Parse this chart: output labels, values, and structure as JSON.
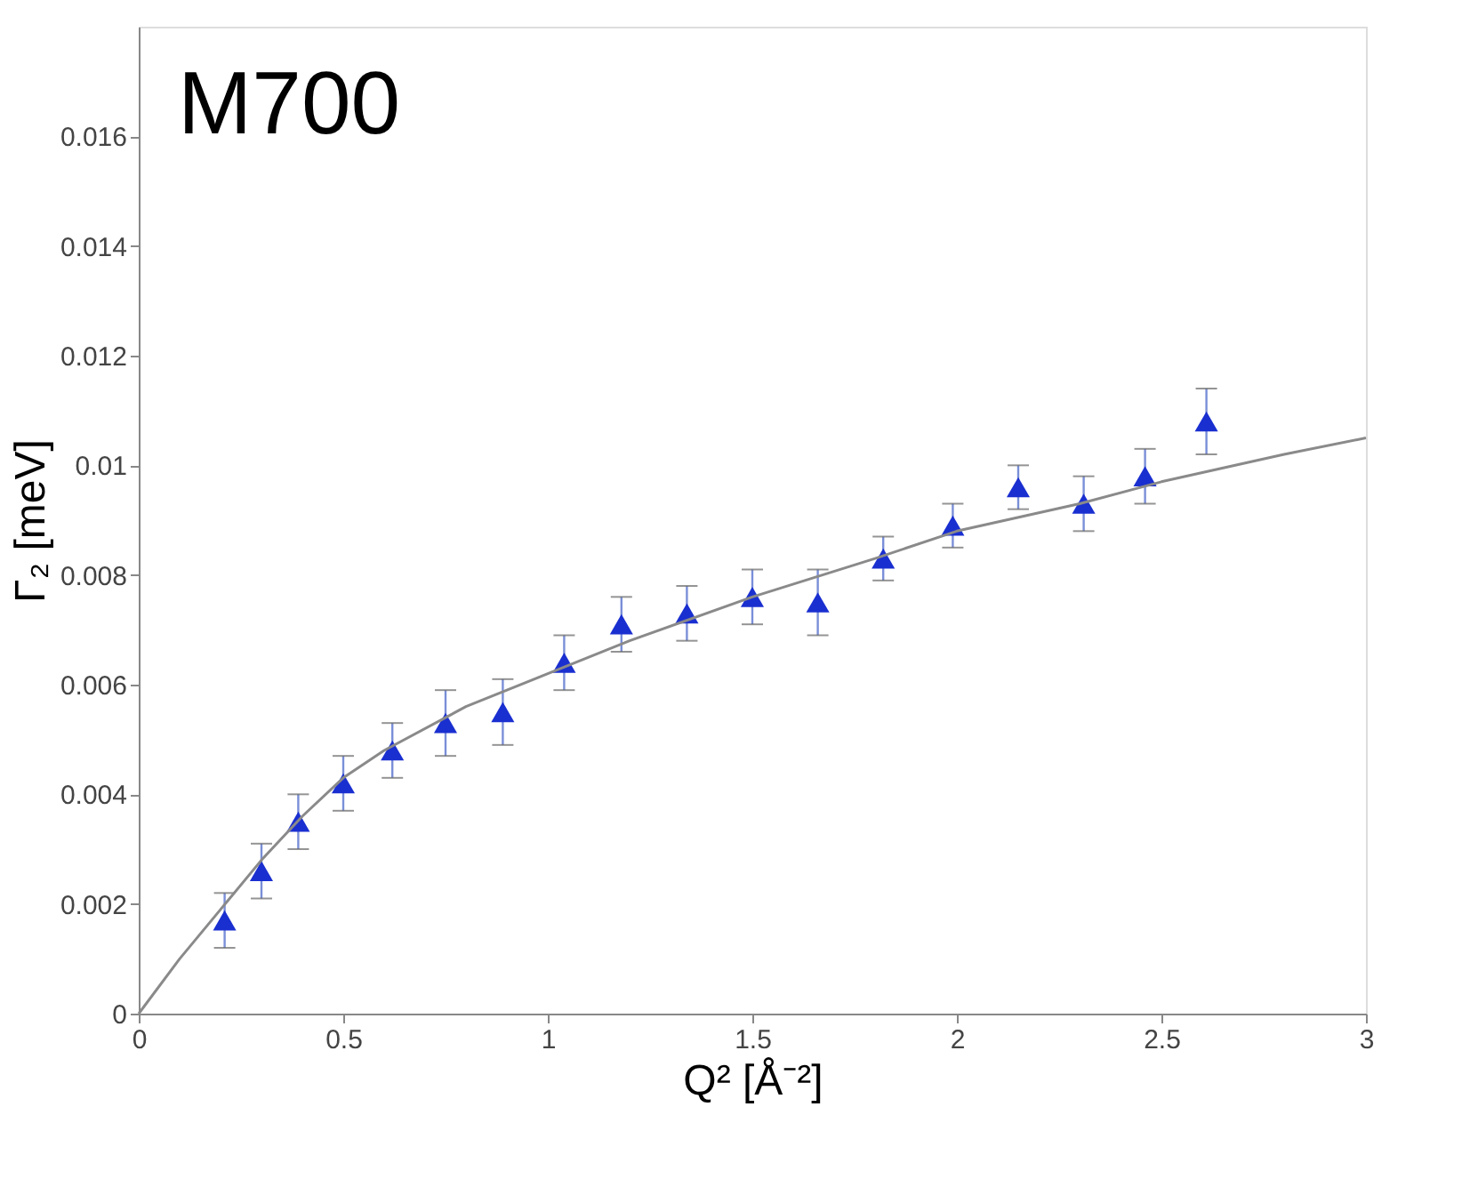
{
  "chart_data": {
    "type": "scatter",
    "title": "M700",
    "xlabel": "Q² [Å⁻²]",
    "ylabel": "Γ₂ [meV]",
    "xlim": [
      0,
      3
    ],
    "ylim": [
      0,
      0.018
    ],
    "xticks": [
      0,
      0.5,
      1,
      1.5,
      2,
      2.5,
      3
    ],
    "yticks": [
      0,
      0.002,
      0.004,
      0.006,
      0.008,
      0.01,
      0.012,
      0.014,
      0.016
    ],
    "series": [
      {
        "color": "#1a2fd0",
        "marker": "triangle",
        "x": [
          0.21,
          0.3,
          0.39,
          0.5,
          0.62,
          0.75,
          0.89,
          1.04,
          1.18,
          1.34,
          1.5,
          1.66,
          1.82,
          1.99,
          2.15,
          2.31,
          2.46,
          2.61
        ],
        "values": [
          0.0017,
          0.0026,
          0.0035,
          0.0042,
          0.0048,
          0.0053,
          0.0055,
          0.0064,
          0.0071,
          0.0073,
          0.0076,
          0.0075,
          0.0083,
          0.0089,
          0.0096,
          0.0093,
          0.0098,
          0.0108
        ],
        "errors": [
          0.0005,
          0.0005,
          0.0005,
          0.0005,
          0.0005,
          0.0006,
          0.0006,
          0.0005,
          0.0005,
          0.0005,
          0.0005,
          0.0006,
          0.0004,
          0.0004,
          0.0004,
          0.0005,
          0.0005,
          0.0006
        ]
      },
      {
        "type": "line",
        "color": "#8a8a8a",
        "marker": "none",
        "line_style": "solid",
        "x": [
          0,
          0.1,
          0.2,
          0.3,
          0.4,
          0.5,
          0.6,
          0.8,
          1.0,
          1.2,
          1.5,
          1.8,
          2.0,
          2.3,
          2.5,
          2.8,
          3.0
        ],
        "values": [
          0,
          0.001,
          0.0019,
          0.0028,
          0.0036,
          0.0043,
          0.0048,
          0.0056,
          0.0062,
          0.0068,
          0.0076,
          0.0083,
          0.0088,
          0.0093,
          0.0097,
          0.0102,
          0.0105
        ]
      }
    ]
  }
}
